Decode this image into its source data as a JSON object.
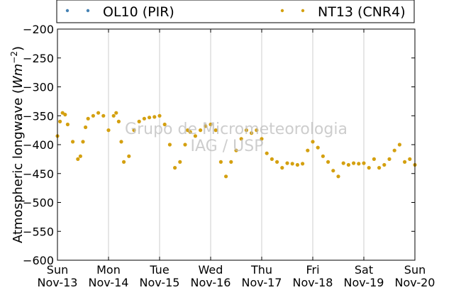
{
  "chart_data": {
    "type": "scatter",
    "title": "",
    "xlabel": "",
    "ylabel": "Atmospheric longwave (Wm⁻²)",
    "ylabel_text": "Atmospheric longwave (",
    "ylabel_unit_base": "Wm",
    "ylabel_unit_exp": "−2",
    "ylabel_close": ")",
    "ylim": [
      -600,
      -200
    ],
    "yticks": [
      -200,
      -250,
      -300,
      -350,
      -400,
      -450,
      -500,
      -550,
      -600
    ],
    "ytick_labels": [
      "−200",
      "−250",
      "−300",
      "−350",
      "−400",
      "−450",
      "−500",
      "−550",
      "−600"
    ],
    "xlim": [
      0,
      7
    ],
    "xticks": [
      0,
      1,
      2,
      3,
      4,
      5,
      6,
      7
    ],
    "xtick_labels": [
      [
        "Sun",
        "Nov-13"
      ],
      [
        "Mon",
        "Nov-14"
      ],
      [
        "Tue",
        "Nov-15"
      ],
      [
        "Wed",
        "Nov-16"
      ],
      [
        "Thu",
        "Nov-17"
      ],
      [
        "Fri",
        "Nov-18"
      ],
      [
        "Sat",
        "Nov-19"
      ],
      [
        "Sun",
        "Nov-20"
      ]
    ],
    "grid": "vertical",
    "legend_placement": "top",
    "watermark": [
      "Grupo de Micrometeorologia",
      "IAG / USP"
    ],
    "series": [
      {
        "name": "OL10 (PIR)",
        "color": "#4682b4",
        "x": [],
        "y": []
      },
      {
        "name": "NT13 (CNR4)",
        "color": "#d4a010",
        "x": [
          0.0,
          0.05,
          0.1,
          0.15,
          0.2,
          0.3,
          0.4,
          0.45,
          0.5,
          0.55,
          0.6,
          0.7,
          0.8,
          0.9,
          1.0,
          1.1,
          1.15,
          1.2,
          1.25,
          1.3,
          1.4,
          1.5,
          1.6,
          1.7,
          1.8,
          1.9,
          2.0,
          2.1,
          2.2,
          2.3,
          2.4,
          2.5,
          2.55,
          2.6,
          2.7,
          2.8,
          2.9,
          3.0,
          3.1,
          3.2,
          3.3,
          3.4,
          3.5,
          3.6,
          3.7,
          3.8,
          3.9,
          4.0,
          4.1,
          4.2,
          4.3,
          4.4,
          4.5,
          4.6,
          4.7,
          4.8,
          4.9,
          5.0,
          5.1,
          5.2,
          5.3,
          5.4,
          5.5,
          5.6,
          5.7,
          5.8,
          5.9,
          6.0,
          6.1,
          6.2,
          6.3,
          6.4,
          6.5,
          6.6,
          6.7,
          6.8,
          6.9,
          7.0
        ],
        "y": [
          -385,
          -360,
          -345,
          -348,
          -365,
          -395,
          -425,
          -420,
          -395,
          -370,
          -355,
          -350,
          -345,
          -350,
          -375,
          -350,
          -345,
          -360,
          -395,
          -430,
          -420,
          -375,
          -360,
          -355,
          -353,
          -352,
          -350,
          -365,
          -400,
          -440,
          -430,
          -400,
          -375,
          -378,
          -385,
          -375,
          -368,
          -365,
          -375,
          -430,
          -455,
          -430,
          -410,
          -390,
          -375,
          -380,
          -375,
          -390,
          -415,
          -425,
          -430,
          -440,
          -432,
          -433,
          -435,
          -433,
          -410,
          -395,
          -405,
          -420,
          -430,
          -445,
          -455,
          -432,
          -435,
          -432,
          -433,
          -432,
          -440,
          -425,
          -440,
          -435,
          -425,
          -410,
          -400,
          -430,
          -425,
          -435
        ]
      }
    ]
  }
}
